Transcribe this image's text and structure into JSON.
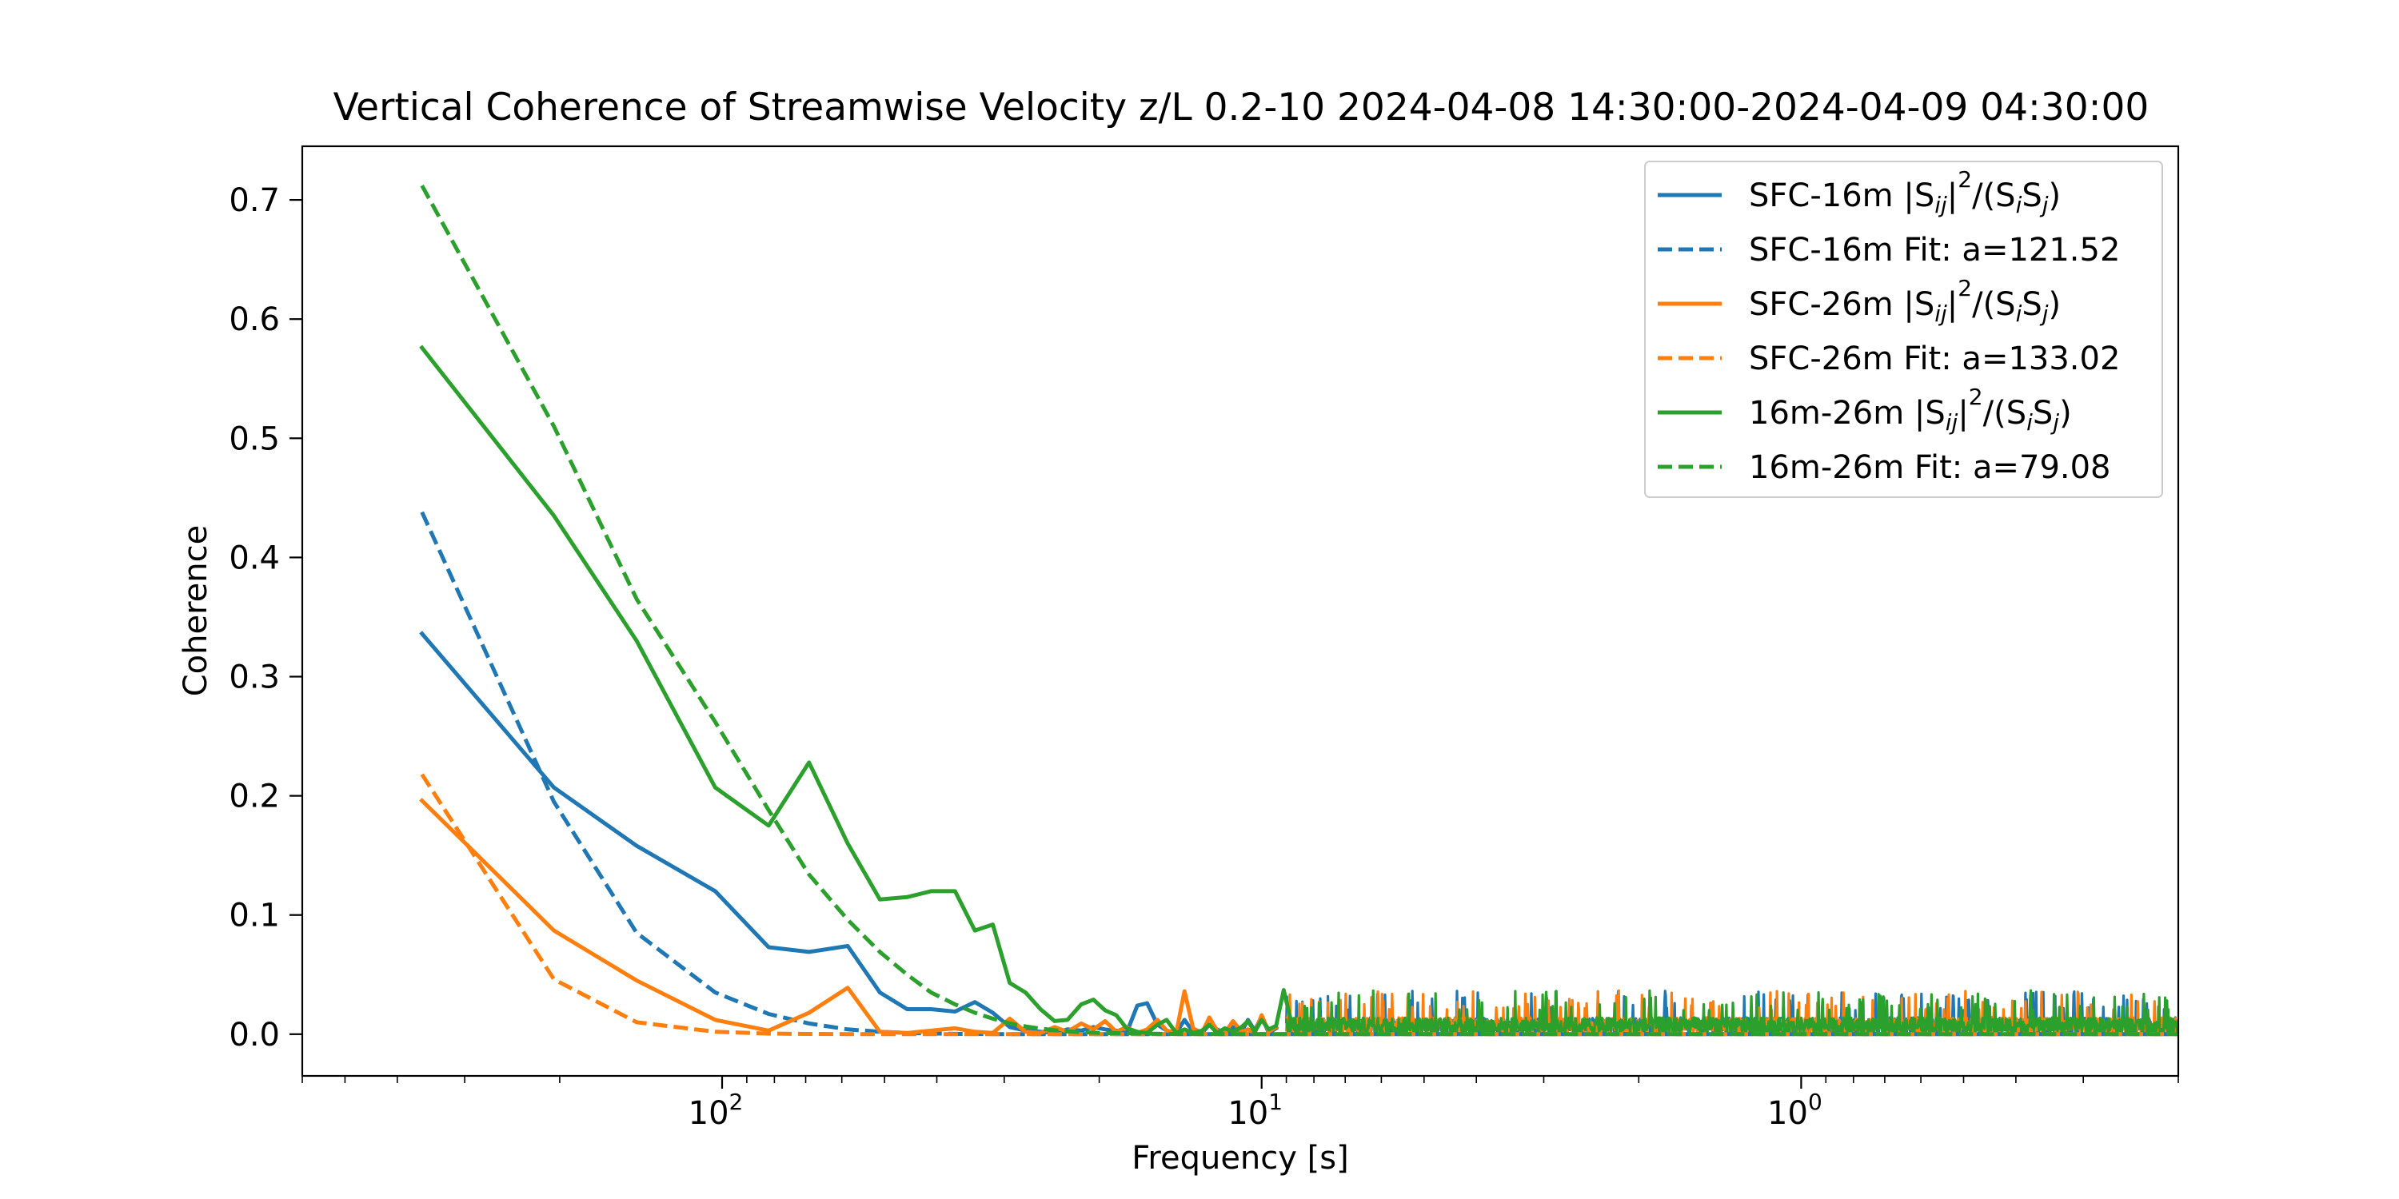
{
  "chart_data": {
    "type": "line",
    "title": "Vertical Coherence of Streamwise Velocity z/L 0.2-10 2024-04-08 14:30:00-2024-04-09 04:30:00",
    "xlabel": "Frequency [s]",
    "ylabel": "Coherence",
    "x_scale": "log",
    "x_inverted": true,
    "xlim": [
      600,
      0.2
    ],
    "ylim": [
      -0.035,
      0.745
    ],
    "grid": false,
    "legend_position": "upper-right",
    "x_ticks": [
      {
        "value": 100,
        "label": "10",
        "exp": "2"
      },
      {
        "value": 10,
        "label": "10",
        "exp": "1"
      },
      {
        "value": 1,
        "label": "10",
        "exp": "0"
      }
    ],
    "y_ticks": [
      {
        "value": 0.0,
        "label": "0.0"
      },
      {
        "value": 0.1,
        "label": "0.1"
      },
      {
        "value": 0.2,
        "label": "0.2"
      },
      {
        "value": 0.3,
        "label": "0.3"
      },
      {
        "value": 0.4,
        "label": "0.4"
      },
      {
        "value": 0.5,
        "label": "0.5"
      },
      {
        "value": 0.6,
        "label": "0.6"
      },
      {
        "value": 0.7,
        "label": "0.7"
      }
    ],
    "legend": [
      {
        "label": "SFC-16m |S",
        "sub1": "ij",
        "mid": "|",
        "sup": "2",
        "mid2": "/(S",
        "sub2": "i",
        "mid3": "S",
        "sub3": "j",
        "end": ")",
        "color": "#1f77b4",
        "dash": false
      },
      {
        "label": "SFC-16m Fit: a=121.52",
        "color": "#1f77b4",
        "dash": true
      },
      {
        "label": "SFC-26m |S",
        "sub1": "ij",
        "mid": "|",
        "sup": "2",
        "mid2": "/(S",
        "sub2": "i",
        "mid3": "S",
        "sub3": "j",
        "end": ")",
        "color": "#ff7f0e",
        "dash": false
      },
      {
        "label": "SFC-26m Fit: a=133.02",
        "color": "#ff7f0e",
        "dash": true
      },
      {
        "label": "16m-26m |S",
        "sub1": "ij",
        "mid": "|",
        "sup": "2",
        "mid2": "/(S",
        "sub2": "i",
        "mid3": "S",
        "sub3": "j",
        "end": ")",
        "color": "#2ca02c",
        "dash": false
      },
      {
        "label": "16m-26m Fit: a=79.08",
        "color": "#2ca02c",
        "dash": true
      }
    ],
    "series": [
      {
        "name": "SFC-16m |Sij|2/(SiSj)",
        "color": "#1f77b4",
        "dash": false,
        "x": [
          360,
          205,
          144,
          103,
          82,
          69,
          58.5,
          51,
          45.4,
          41,
          37,
          34,
          31.5,
          29.3,
          27.4,
          25.7,
          24.2,
          22.9,
          21.6,
          20.5,
          19.5,
          18.6,
          17.8,
          17,
          16.3,
          15.6,
          15,
          14.4,
          13.9,
          13.4,
          12.9,
          12.5,
          12.1,
          11.7,
          11.3,
          10.9,
          10.6,
          10.3,
          10.0,
          9.7,
          9.4
        ],
        "y": [
          0.336,
          0.207,
          0.158,
          0.12,
          0.073,
          0.069,
          0.074,
          0.035,
          0.021,
          0.021,
          0.019,
          0.027,
          0.018,
          0.006,
          0.003,
          0.002,
          0.001,
          0.004,
          0.003,
          0.006,
          0.004,
          0.003,
          0.001,
          0.024,
          0.026,
          0.008,
          0.003,
          0.001,
          0.012,
          0.002,
          0.001,
          0.008,
          0.004,
          0.001,
          0.006,
          0.002,
          0.012,
          0.003,
          0.015,
          0.001,
          0.005
        ]
      },
      {
        "name": "SFC-16m Fit: a=121.52",
        "color": "#1f77b4",
        "dash": true,
        "x": [
          360,
          205,
          144,
          103,
          82,
          69,
          58.5,
          51,
          45.4,
          41,
          37,
          30,
          20,
          10,
          5,
          1,
          0.2
        ],
        "y": [
          0.438,
          0.195,
          0.085,
          0.035,
          0.017,
          0.009,
          0.004,
          0.002,
          0.001,
          0.0006,
          0.0003,
          0.0,
          0.0,
          0.0,
          0.0,
          0.0,
          0.0
        ]
      },
      {
        "name": "SFC-26m |Sij|2/(SiSj)",
        "color": "#ff7f0e",
        "dash": false,
        "x": [
          360,
          205,
          144,
          103,
          82,
          69,
          58.5,
          51,
          45.4,
          41,
          37,
          34,
          31.5,
          29.3,
          27.4,
          25.7,
          24.2,
          22.9,
          21.6,
          20.5,
          19.5,
          18.6,
          17.8,
          17,
          16.3,
          15.6,
          15,
          14.4,
          13.9,
          13.4,
          12.9,
          12.5,
          12.1,
          11.7,
          11.3,
          10.9,
          10.6,
          10.3,
          10.0,
          9.7,
          9.4
        ],
        "y": [
          0.196,
          0.087,
          0.045,
          0.012,
          0.003,
          0.018,
          0.039,
          0.002,
          0.001,
          0.003,
          0.005,
          0.002,
          0.001,
          0.013,
          0.002,
          0.001,
          0.006,
          0.002,
          0.009,
          0.004,
          0.011,
          0.002,
          0.006,
          0.001,
          0.004,
          0.012,
          0.003,
          0.001,
          0.036,
          0.005,
          0.001,
          0.014,
          0.003,
          0.001,
          0.011,
          0.002,
          0.004,
          0.001,
          0.016,
          0.002,
          0.006
        ]
      },
      {
        "name": "SFC-26m Fit: a=133.02",
        "color": "#ff7f0e",
        "dash": true,
        "x": [
          360,
          205,
          144,
          103,
          82,
          69,
          58.5,
          51,
          45.4,
          41,
          30,
          20,
          10,
          1,
          0.2
        ],
        "y": [
          0.218,
          0.046,
          0.01,
          0.002,
          0.0005,
          0.0002,
          0.0001,
          0.0,
          0.0,
          0.0,
          0.0,
          0.0,
          0.0,
          0.0,
          0.0
        ]
      },
      {
        "name": "16m-26m |Sij|2/(SiSj)",
        "color": "#2ca02c",
        "dash": false,
        "x": [
          360,
          205,
          144,
          103,
          82,
          69,
          58.5,
          51,
          45.4,
          41,
          37,
          34,
          31.5,
          29.3,
          27.4,
          25.7,
          24.2,
          22.9,
          21.6,
          20.5,
          19.5,
          18.6,
          17.8,
          17,
          16.3,
          15.6,
          15,
          14.4,
          13.9,
          13.4,
          12.9,
          12.5,
          12.1,
          11.7,
          11.3,
          10.9,
          10.6,
          10.3,
          10.0,
          9.7,
          9.4,
          9.1,
          8.8,
          8.6,
          8.3
        ],
        "y": [
          0.576,
          0.435,
          0.33,
          0.207,
          0.175,
          0.228,
          0.16,
          0.113,
          0.115,
          0.12,
          0.12,
          0.087,
          0.092,
          0.043,
          0.035,
          0.021,
          0.011,
          0.012,
          0.025,
          0.029,
          0.02,
          0.016,
          0.005,
          0.002,
          0.001,
          0.008,
          0.012,
          0.001,
          0.004,
          0.001,
          0.003,
          0.008,
          0.001,
          0.005,
          0.002,
          0.006,
          0.011,
          0.002,
          0.012,
          0.004,
          0.007,
          0.037,
          0.009,
          0.001,
          0.014
        ]
      },
      {
        "name": "16m-26m Fit: a=79.08",
        "color": "#2ca02c",
        "dash": true,
        "x": [
          360,
          205,
          144,
          103,
          82,
          69,
          58.5,
          51,
          45.4,
          41,
          37,
          34,
          31.5,
          29.3,
          27.4,
          25.7,
          24.2,
          22.9,
          21.6,
          20,
          15,
          10,
          5,
          1,
          0.2
        ],
        "y": [
          0.712,
          0.51,
          0.365,
          0.262,
          0.188,
          0.134,
          0.096,
          0.069,
          0.05,
          0.035,
          0.025,
          0.018,
          0.013,
          0.009,
          0.0065,
          0.0047,
          0.0033,
          0.0024,
          0.0017,
          0.001,
          0.0002,
          0.0,
          0.0,
          0.0,
          0.0
        ]
      }
    ],
    "noise_region": {
      "x_range": [
        9.0,
        0.2
      ],
      "typical_max": 0.02,
      "peak_max": 0.048
    }
  }
}
